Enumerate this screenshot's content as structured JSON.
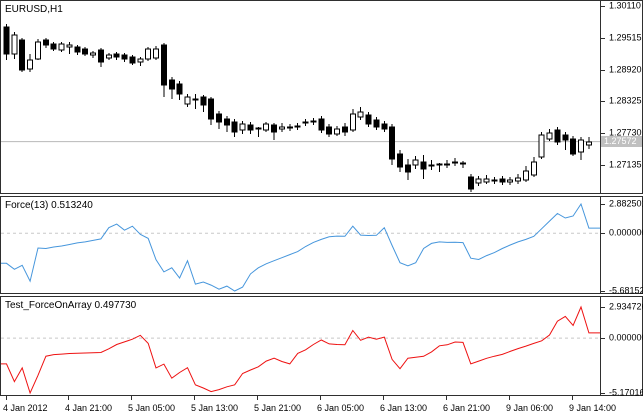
{
  "colors": {
    "up_candle": "#ffffff",
    "down_candle": "#000000",
    "candle_outline": "#000000",
    "current_price_line": "#b8b8b8",
    "price_badge_bg": "#c0c0c0",
    "price_badge_text": "#ffffff",
    "zero_line": "#c8c8c8",
    "force_line": "#4696dc",
    "force_on_array_line": "#ee1111",
    "panel_border": "#2f2f2f",
    "axis_text": "#000000"
  },
  "chart_data": [
    {
      "type": "candlestick",
      "title": "EURUSD,H1",
      "symbol": "EURUSD",
      "period": "H1",
      "current_price": "1.27572",
      "y_tick_labels": [
        "1.30110",
        "1.29515",
        "1.28920",
        "1.28325",
        "1.27730",
        "1.27135"
      ],
      "ylim": [
        1.2655,
        1.302
      ],
      "x_tick_labels": [
        "4 Jan 2012",
        "4 Jan 21:00",
        "5 Jan 05:00",
        "5 Jan 13:00",
        "5 Jan 21:00",
        "6 Jan 05:00",
        "6 Jan 13:00",
        "6 Jan 21:00",
        "9 Jan 06:00",
        "9 Jan 14:00"
      ],
      "bars_per_x_tick": 8,
      "ohlc": [
        [
          1.29717,
          1.29773,
          1.291,
          1.29212
        ],
        [
          1.29212,
          1.29624,
          1.29119,
          1.29568
        ],
        [
          1.29474,
          1.29512,
          1.28876,
          1.28913
        ],
        [
          1.28932,
          1.29212,
          1.28876,
          1.291
        ],
        [
          1.29119,
          1.29493,
          1.291,
          1.29437
        ],
        [
          1.29474,
          1.29512,
          1.29325,
          1.29381
        ],
        [
          1.294,
          1.29437,
          1.29268,
          1.29306
        ],
        [
          1.29287,
          1.29437,
          1.2925,
          1.294
        ],
        [
          1.29343,
          1.29437,
          1.29212,
          1.29381
        ],
        [
          1.29343,
          1.29381,
          1.29194,
          1.2925
        ],
        [
          1.29306,
          1.29343,
          1.29175,
          1.29212
        ],
        [
          1.29194,
          1.29268,
          1.29137,
          1.29231
        ],
        [
          1.29287,
          1.29325,
          1.28969,
          1.29063
        ],
        [
          1.29137,
          1.29231,
          1.291,
          1.29194
        ],
        [
          1.29212,
          1.2925,
          1.291,
          1.29156
        ],
        [
          1.29194,
          1.29231,
          1.29063,
          1.29119
        ],
        [
          1.29156,
          1.29194,
          1.29007,
          1.29044
        ],
        [
          1.29063,
          1.29156,
          1.28988,
          1.29119
        ],
        [
          1.29119,
          1.29343,
          1.29082,
          1.29306
        ],
        [
          1.29137,
          1.29362,
          1.291,
          1.29306
        ],
        [
          1.29381,
          1.29418,
          1.28408,
          1.28633
        ],
        [
          1.28726,
          1.28782,
          1.28371,
          1.28558
        ],
        [
          1.28651,
          1.28707,
          1.28352,
          1.28464
        ],
        [
          1.28277,
          1.28464,
          1.28221,
          1.28408
        ],
        [
          1.28352,
          1.28464,
          1.28184,
          1.28371
        ],
        [
          1.28408,
          1.28446,
          1.28128,
          1.28259
        ],
        [
          1.28371,
          1.28408,
          1.27885,
          1.27997
        ],
        [
          1.2809,
          1.28146,
          1.2781,
          1.27941
        ],
        [
          1.27997,
          1.28053,
          1.27753,
          1.27885
        ],
        [
          1.27941,
          1.27997,
          1.2766,
          1.27753
        ],
        [
          1.27791,
          1.27959,
          1.27716,
          1.27903
        ],
        [
          1.27885,
          1.27941,
          1.27716,
          1.27791
        ],
        [
          1.27828,
          1.27847,
          1.2766,
          1.2781
        ],
        [
          1.27791,
          1.27941,
          1.27753,
          1.27903
        ],
        [
          1.27885,
          1.27922,
          1.27604,
          1.27753
        ],
        [
          1.2781,
          1.27922,
          1.27753,
          1.27847
        ],
        [
          1.27847,
          1.27903,
          1.27772,
          1.27847
        ],
        [
          1.27866,
          1.27922,
          1.27791,
          1.27866
        ],
        [
          1.27941,
          1.27997,
          1.27866,
          1.27941
        ],
        [
          1.27959,
          1.28016,
          1.27885,
          1.27959
        ],
        [
          1.27997,
          1.28053,
          1.27735,
          1.27791
        ],
        [
          1.27847,
          1.27903,
          1.2766,
          1.27716
        ],
        [
          1.27716,
          1.27866,
          1.27678,
          1.2781
        ],
        [
          1.27847,
          1.27922,
          1.27678,
          1.27753
        ],
        [
          1.27791,
          1.28184,
          1.27753,
          1.2809
        ],
        [
          1.28034,
          1.28221,
          1.27978,
          1.28128
        ],
        [
          1.28072,
          1.28128,
          1.27847,
          1.27903
        ],
        [
          1.27978,
          1.28034,
          1.27791,
          1.27847
        ],
        [
          1.27903,
          1.27959,
          1.27753,
          1.2781
        ],
        [
          1.27847,
          1.27903,
          1.27136,
          1.27248
        ],
        [
          1.27341,
          1.27416,
          1.27005,
          1.27098
        ],
        [
          1.27136,
          1.27248,
          1.26855,
          1.27005
        ],
        [
          1.27136,
          1.27304,
          1.27061,
          1.27229
        ],
        [
          1.27192,
          1.27323,
          1.26873,
          1.27061
        ],
        [
          1.27117,
          1.27229,
          1.27042,
          1.27136
        ],
        [
          1.27154,
          1.27173,
          1.27005,
          1.27154
        ],
        [
          1.27154,
          1.27229,
          1.2708,
          1.27154
        ],
        [
          1.27192,
          1.27266,
          1.27117,
          1.27192
        ],
        [
          1.27154,
          1.2721,
          1.2708,
          1.27173
        ],
        [
          1.26911,
          1.26967,
          1.2663,
          1.26686
        ],
        [
          1.26798,
          1.26929,
          1.26742,
          1.26873
        ],
        [
          1.26817,
          1.26948,
          1.2678,
          1.26873
        ],
        [
          1.26836,
          1.26911,
          1.2678,
          1.26855
        ],
        [
          1.26873,
          1.26929,
          1.26761,
          1.26817
        ],
        [
          1.26817,
          1.26911,
          1.26761,
          1.26855
        ],
        [
          1.26836,
          1.26967,
          1.2678,
          1.26892
        ],
        [
          1.26855,
          1.27117,
          1.26817,
          1.27023
        ],
        [
          1.26948,
          1.27285,
          1.26911,
          1.27192
        ],
        [
          1.27285,
          1.27753,
          1.27248,
          1.27697
        ],
        [
          1.27622,
          1.2781,
          1.27585,
          1.27735
        ],
        [
          1.27791,
          1.27847,
          1.2751,
          1.27566
        ],
        [
          1.27697,
          1.27753,
          1.27416,
          1.27604
        ],
        [
          1.27622,
          1.27678,
          1.27304,
          1.27341
        ],
        [
          1.27379,
          1.2766,
          1.27229,
          1.27604
        ],
        [
          1.2751,
          1.2766,
          1.27435,
          1.27566
        ]
      ]
    },
    {
      "type": "line",
      "name": "Force(13)",
      "current_value": "0.513240",
      "y_tick_labels": [
        "2.882501",
        "0.000000",
        "-5.681529"
      ],
      "ylim": [
        -5.681529,
        2.882501
      ],
      "grid": "dashed zero line",
      "legend_position": "top-left",
      "values": [
        -2.95,
        -3.55,
        -3.15,
        -4.72,
        -1.45,
        -1.5,
        -1.35,
        -1.25,
        -1.1,
        -0.95,
        -0.85,
        -0.7,
        -0.55,
        0.55,
        0.9,
        0.3,
        0.7,
        -0.1,
        -0.5,
        -2.6,
        -3.8,
        -3.4,
        -4.4,
        -2.7,
        -5.0,
        -4.8,
        -5.1,
        -5.5,
        -5.2,
        -5.681529,
        -5.3,
        -4.0,
        -3.4,
        -3.0,
        -2.7,
        -2.4,
        -2.1,
        -1.8,
        -1.3,
        -0.9,
        -0.6,
        -0.35,
        -0.28,
        -0.3,
        0.7,
        -0.18,
        -0.22,
        -0.2,
        0.55,
        -1.2,
        -2.9,
        -3.2,
        -2.9,
        -1.5,
        -1.0,
        -0.85,
        -0.9,
        -0.88,
        -0.92,
        -2.45,
        -2.58,
        -2.2,
        -1.9,
        -1.5,
        -1.15,
        -0.85,
        -0.6,
        -0.3,
        0.45,
        1.2,
        1.95,
        1.5,
        1.7,
        2.882501,
        0.51324
      ]
    },
    {
      "type": "line",
      "name": "Test_ForceOnArray",
      "current_value": "0.497730",
      "y_tick_labels": [
        "2.934726",
        "0.000000",
        "-5.170169"
      ],
      "ylim": [
        -5.170169,
        2.934726
      ],
      "grid": "dashed zero line",
      "legend_position": "top-left",
      "values": [
        -2.43,
        -4.1,
        -2.8,
        -5.170169,
        -3.5,
        -1.7,
        -1.55,
        -1.5,
        -1.45,
        -1.42,
        -1.4,
        -1.38,
        -1.35,
        -1.0,
        -0.6,
        -0.35,
        -0.1,
        0.27,
        -0.5,
        -2.8,
        -2.45,
        -3.78,
        -3.24,
        -2.79,
        -4.41,
        -4.7,
        -5.04,
        -4.85,
        -4.59,
        -4.4,
        -3.33,
        -3.0,
        -2.7,
        -2.16,
        -1.89,
        -2.2,
        -2.43,
        -1.44,
        -1.1,
        -0.6,
        -0.18,
        -0.54,
        -0.6,
        -0.63,
        0.72,
        -0.2,
        0.1,
        -0.1,
        0.1,
        -2.0,
        -2.88,
        -1.89,
        -1.8,
        -1.71,
        -1.3,
        -0.72,
        -0.63,
        -0.36,
        -0.4,
        -2.43,
        -2.16,
        -1.9,
        -1.7,
        -1.53,
        -1.25,
        -0.99,
        -0.75,
        -0.5,
        -0.25,
        0.3,
        1.6,
        2.05,
        1.2,
        2.934726,
        0.49773
      ]
    }
  ]
}
